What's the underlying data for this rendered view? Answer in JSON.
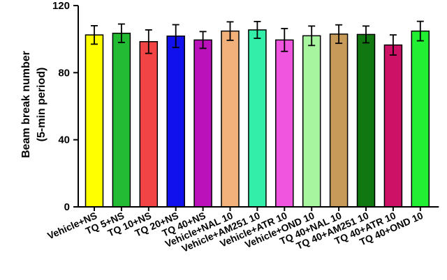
{
  "chart_data": {
    "type": "bar",
    "ylabel": "Beam break number",
    "ylabel_line2": "(5-min period)",
    "ylim": [
      0,
      120
    ],
    "yticks": [
      0,
      40,
      80,
      120
    ],
    "grid": false,
    "categories": [
      "Vehicle+NS",
      "TQ 5+NS",
      "TQ 10+NS",
      "TQ 20+NS",
      "TQ 40+NS",
      "Vehicle+NAL 10",
      "Vehicle+AM251 10",
      "Vehicle+ATR 10",
      "Vehicle+OND 10",
      "TQ 40+NAL 10",
      "TQ 40+AM251 10",
      "TQ 40+ATR 10",
      "TQ 40+OND 10"
    ],
    "values": [
      102.5,
      103.5,
      98.5,
      101.8,
      99.5,
      104.8,
      105.5,
      99.5,
      102,
      103,
      102.8,
      96.5,
      104.8
    ],
    "errors": [
      5.5,
      5.5,
      7,
      6.8,
      5,
      5.5,
      5,
      6.8,
      5.8,
      5.5,
      5,
      6,
      5.8
    ],
    "colors": [
      "#ffff00",
      "#22bb33",
      "#f24444",
      "#1111ee",
      "#bb11bb",
      "#f2b07a",
      "#33eea8",
      "#f055e0",
      "#a8f5a0",
      "#c89a5a",
      "#117711",
      "#cc1166",
      "#22ee33"
    ]
  }
}
